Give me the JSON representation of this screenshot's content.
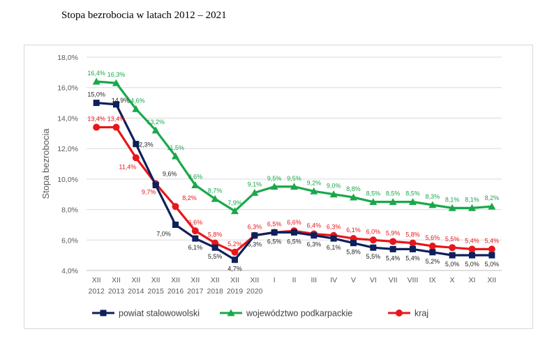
{
  "page_title": "Stopa bezrobocia w latach 2012 – 2021",
  "chart_data": {
    "type": "line",
    "title": "Stopa bezrobocia w latach 2012 – 2021",
    "ylabel": "Stopa bezrobocia",
    "xlabel": "",
    "ylim": [
      4.0,
      18.0
    ],
    "yticks": [
      "4,0%",
      "6,0%",
      "8,0%",
      "10,0%",
      "12,0%",
      "14,0%",
      "16,0%",
      "18,0%"
    ],
    "ytick_values": [
      4,
      6,
      8,
      10,
      12,
      14,
      16,
      18
    ],
    "categories": [
      [
        "XII",
        "2012"
      ],
      [
        "XII",
        "2013"
      ],
      [
        "XII",
        "2014"
      ],
      [
        "XII",
        "2015"
      ],
      [
        "XII",
        "2016"
      ],
      [
        "XII",
        "2017"
      ],
      [
        "XII",
        "2018"
      ],
      [
        "XII",
        "2019"
      ],
      [
        "XII",
        "2020"
      ],
      [
        "I",
        ""
      ],
      [
        "II",
        ""
      ],
      [
        "III",
        ""
      ],
      [
        "IV",
        ""
      ],
      [
        "V",
        ""
      ],
      [
        "VI",
        ""
      ],
      [
        "VII",
        ""
      ],
      [
        "VIII",
        ""
      ],
      [
        "IX",
        ""
      ],
      [
        "X",
        ""
      ],
      [
        "XI",
        ""
      ],
      [
        "XII",
        ""
      ]
    ],
    "legend_position": "bottom",
    "series": [
      {
        "name": "powiat stalowowolski",
        "color": "#0d1f5c",
        "label_color": "#1f1f1f",
        "marker": "square",
        "values": [
          15.0,
          14.9,
          12.3,
          9.6,
          7.0,
          6.1,
          5.5,
          4.7,
          6.3,
          6.5,
          6.5,
          6.3,
          6.1,
          5.8,
          5.5,
          5.4,
          5.4,
          5.2,
          5.0,
          5.0,
          5.0
        ],
        "labels": [
          "15,0%",
          "14,9%",
          "12,3%",
          "9,6%",
          "7,0%",
          "6,1%",
          "5,5%",
          "4,7%",
          "6,3%",
          "6,5%",
          "6,5%",
          "6,3%",
          "6,1%",
          "5,8%",
          "5,5%",
          "5,4%",
          "5,4%",
          "5,2%",
          "5,0%",
          "5,0%",
          "5,0%"
        ]
      },
      {
        "name": "województwo podkarpackie",
        "color": "#19a84a",
        "label_color": "#19a84a",
        "marker": "triangle",
        "values": [
          16.4,
          16.3,
          14.6,
          13.2,
          11.5,
          9.6,
          8.7,
          7.9,
          9.1,
          9.5,
          9.5,
          9.2,
          9.0,
          8.8,
          8.5,
          8.5,
          8.5,
          8.3,
          8.1,
          8.1,
          8.2
        ],
        "labels": [
          "16,4%",
          "16,3%",
          "14,6%",
          "13,2%",
          "11,5%",
          "9,6%",
          "8,7%",
          "7,9%",
          "9,1%",
          "9,5%",
          "9,5%",
          "9,2%",
          "9,0%",
          "8,8%",
          "8,5%",
          "8,5%",
          "8,5%",
          "8,3%",
          "8,1%",
          "8,1%",
          "8,2%"
        ]
      },
      {
        "name": "kraj",
        "color": "#e8161b",
        "label_color": "#e8161b",
        "marker": "circle",
        "values": [
          13.4,
          13.4,
          11.4,
          9.7,
          8.2,
          6.6,
          5.8,
          5.2,
          6.3,
          6.5,
          6.6,
          6.4,
          6.3,
          6.1,
          6.0,
          5.9,
          5.8,
          5.6,
          5.5,
          5.4,
          5.4
        ],
        "labels": [
          "13,4%",
          "13,4%",
          "11,4%",
          "9,7%",
          "8,2%",
          "6,6%",
          "5,8%",
          "5,2%",
          "6,3%",
          "6,5%",
          "6,6%",
          "6,4%",
          "6,3%",
          "6,1%",
          "6,0%",
          "5,9%",
          "5,8%",
          "5,6%",
          "5,5%",
          "5,4%",
          "5,4%"
        ]
      }
    ]
  }
}
